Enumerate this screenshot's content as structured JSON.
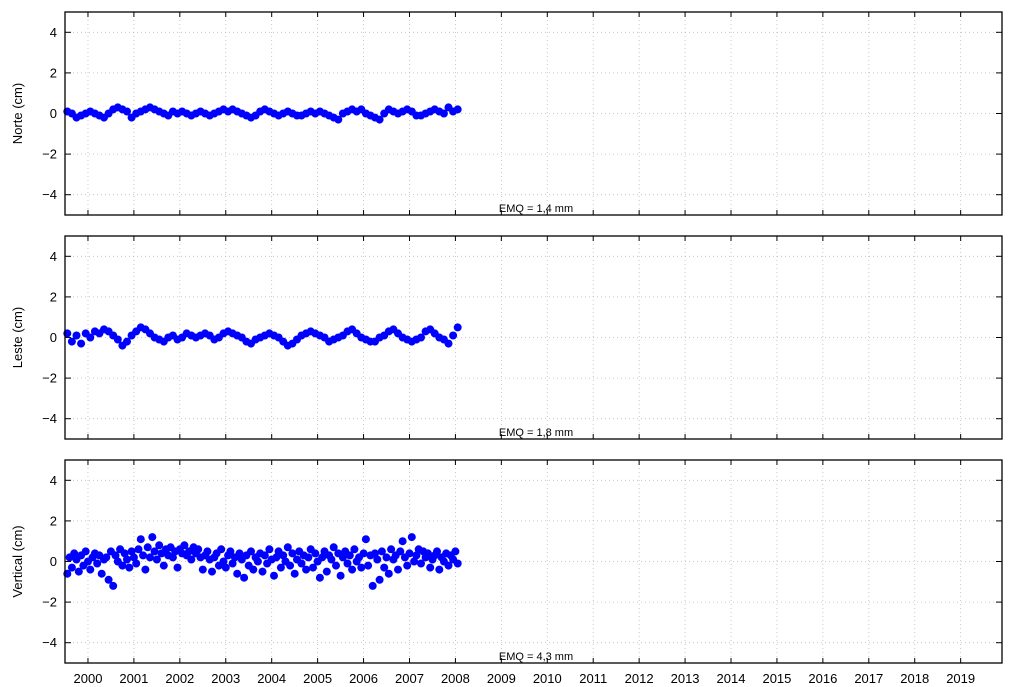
{
  "chart_data": [
    {
      "type": "scatter",
      "ylabel": "Norte (cm)",
      "annotation": "EMQ = 1,4 mm",
      "xlim": [
        1999.5,
        2019.9
      ],
      "ylim": [
        -5,
        5
      ],
      "yticks": [
        -4,
        -2,
        0,
        2,
        4
      ],
      "ytick_labels": [
        "−4",
        "−2",
        "0",
        "2",
        "4"
      ],
      "grid": true,
      "marker_color": "#0000ff",
      "series": [
        {
          "x": [
            1999.55,
            1999.65,
            1999.75,
            1999.85,
            1999.95,
            2000.05,
            2000.15,
            2000.25,
            2000.35,
            2000.45,
            2000.55,
            2000.65,
            2000.75,
            2000.85,
            2000.95,
            2001.05,
            2001.15,
            2001.25,
            2001.35,
            2001.45,
            2001.55,
            2001.65,
            2001.75,
            2001.85,
            2001.95,
            2002.05,
            2002.15,
            2002.25,
            2002.35,
            2002.45,
            2002.55,
            2002.65,
            2002.75,
            2002.85,
            2002.95,
            2003.05,
            2003.15,
            2003.25,
            2003.35,
            2003.45,
            2003.55,
            2003.65,
            2003.75,
            2003.85,
            2003.95,
            2004.05,
            2004.15,
            2004.25,
            2004.35,
            2004.45,
            2004.55,
            2004.65,
            2004.75,
            2004.85,
            2004.95,
            2005.05,
            2005.15,
            2005.25,
            2005.35,
            2005.45,
            2005.55,
            2005.65,
            2005.75,
            2005.85,
            2005.95,
            2006.05,
            2006.15,
            2006.25,
            2006.35,
            2006.45,
            2006.55,
            2006.65,
            2006.75,
            2006.85,
            2006.95,
            2007.05,
            2007.15,
            2007.25,
            2007.35,
            2007.45,
            2007.55,
            2007.65,
            2007.75,
            2007.85,
            2007.95,
            2008.05
          ],
          "y": [
            0.1,
            0.0,
            -0.2,
            -0.1,
            0.0,
            0.1,
            0.0,
            -0.1,
            -0.2,
            0.0,
            0.2,
            0.3,
            0.2,
            0.1,
            -0.2,
            0.0,
            0.1,
            0.2,
            0.3,
            0.2,
            0.1,
            0.0,
            -0.1,
            0.1,
            0.0,
            0.1,
            0.0,
            -0.1,
            0.0,
            0.1,
            0.0,
            -0.1,
            0.0,
            0.1,
            0.2,
            0.1,
            0.2,
            0.1,
            0.0,
            -0.1,
            -0.2,
            -0.1,
            0.1,
            0.2,
            0.1,
            0.0,
            -0.1,
            0.0,
            0.1,
            0.0,
            -0.1,
            -0.1,
            0.0,
            0.1,
            0.0,
            0.1,
            0.0,
            -0.1,
            -0.2,
            -0.3,
            0.0,
            0.1,
            0.2,
            0.1,
            0.2,
            0.0,
            -0.1,
            -0.2,
            -0.3,
            0.0,
            0.2,
            0.1,
            0.0,
            0.1,
            0.2,
            0.1,
            -0.1,
            -0.1,
            0.0,
            0.1,
            0.2,
            0.1,
            0.0,
            0.3,
            0.1,
            0.2
          ]
        }
      ]
    },
    {
      "type": "scatter",
      "ylabel": "Leste (cm)",
      "annotation": "EMQ = 1,8 mm",
      "xlim": [
        1999.5,
        2019.9
      ],
      "ylim": [
        -5,
        5
      ],
      "yticks": [
        -4,
        -2,
        0,
        2,
        4
      ],
      "ytick_labels": [
        "−4",
        "−2",
        "0",
        "2",
        "4"
      ],
      "grid": true,
      "marker_color": "#0000ff",
      "series": [
        {
          "x": [
            1999.55,
            1999.65,
            1999.75,
            1999.85,
            1999.95,
            2000.05,
            2000.15,
            2000.25,
            2000.35,
            2000.45,
            2000.55,
            2000.65,
            2000.75,
            2000.85,
            2000.95,
            2001.05,
            2001.15,
            2001.25,
            2001.35,
            2001.45,
            2001.55,
            2001.65,
            2001.75,
            2001.85,
            2001.95,
            2002.05,
            2002.15,
            2002.25,
            2002.35,
            2002.45,
            2002.55,
            2002.65,
            2002.75,
            2002.85,
            2002.95,
            2003.05,
            2003.15,
            2003.25,
            2003.35,
            2003.45,
            2003.55,
            2003.65,
            2003.75,
            2003.85,
            2003.95,
            2004.05,
            2004.15,
            2004.25,
            2004.35,
            2004.45,
            2004.55,
            2004.65,
            2004.75,
            2004.85,
            2004.95,
            2005.05,
            2005.15,
            2005.25,
            2005.35,
            2005.45,
            2005.55,
            2005.65,
            2005.75,
            2005.85,
            2005.95,
            2006.05,
            2006.15,
            2006.25,
            2006.35,
            2006.45,
            2006.55,
            2006.65,
            2006.75,
            2006.85,
            2006.95,
            2007.05,
            2007.15,
            2007.25,
            2007.35,
            2007.45,
            2007.55,
            2007.65,
            2007.75,
            2007.85,
            2007.95,
            2008.05
          ],
          "y": [
            0.2,
            -0.2,
            0.1,
            -0.3,
            0.2,
            0.0,
            0.3,
            0.2,
            0.4,
            0.3,
            0.1,
            -0.1,
            -0.4,
            -0.2,
            0.1,
            0.3,
            0.5,
            0.4,
            0.2,
            0.0,
            -0.1,
            -0.2,
            0.0,
            0.1,
            -0.1,
            0.0,
            0.2,
            0.1,
            0.0,
            0.1,
            0.2,
            0.1,
            -0.1,
            0.0,
            0.2,
            0.3,
            0.2,
            0.1,
            0.0,
            -0.2,
            -0.3,
            -0.1,
            0.0,
            0.1,
            0.2,
            0.1,
            0.0,
            -0.2,
            -0.4,
            -0.3,
            -0.1,
            0.1,
            0.2,
            0.3,
            0.2,
            0.1,
            0.0,
            -0.2,
            -0.1,
            0.0,
            0.1,
            0.3,
            0.4,
            0.2,
            0.0,
            -0.1,
            -0.2,
            -0.2,
            0.0,
            0.1,
            0.3,
            0.4,
            0.2,
            0.0,
            -0.1,
            -0.2,
            -0.1,
            0.0,
            0.3,
            0.4,
            0.2,
            0.0,
            -0.1,
            -0.3,
            0.1,
            0.5
          ]
        }
      ]
    },
    {
      "type": "scatter",
      "ylabel": "Vertical (cm)",
      "annotation": "EMQ = 4,3 mm",
      "xlim": [
        1999.5,
        2019.9
      ],
      "ylim": [
        -5,
        5
      ],
      "yticks": [
        -4,
        -2,
        0,
        2,
        4
      ],
      "ytick_labels": [
        "−4",
        "−2",
        "0",
        "2",
        "4"
      ],
      "grid": true,
      "marker_color": "#0000ff",
      "series": [
        {
          "x": [
            1999.55,
            1999.6,
            1999.65,
            1999.7,
            1999.75,
            1999.8,
            1999.85,
            1999.9,
            1999.95,
            2000.0,
            2000.05,
            2000.1,
            2000.15,
            2000.2,
            2000.25,
            2000.3,
            2000.35,
            2000.4,
            2000.45,
            2000.5,
            2000.55,
            2000.6,
            2000.65,
            2000.7,
            2000.75,
            2000.8,
            2000.85,
            2000.9,
            2000.95,
            2001.0,
            2001.05,
            2001.1,
            2001.15,
            2001.2,
            2001.25,
            2001.3,
            2001.35,
            2001.4,
            2001.45,
            2001.5,
            2001.55,
            2001.6,
            2001.65,
            2001.7,
            2001.75,
            2001.8,
            2001.85,
            2001.9,
            2001.95,
            2002.0,
            2002.05,
            2002.1,
            2002.15,
            2002.2,
            2002.25,
            2002.3,
            2002.35,
            2002.4,
            2002.45,
            2002.5,
            2002.55,
            2002.6,
            2002.65,
            2002.7,
            2002.75,
            2002.8,
            2002.85,
            2002.9,
            2002.95,
            2003.0,
            2003.05,
            2003.1,
            2003.15,
            2003.2,
            2003.25,
            2003.3,
            2003.35,
            2003.4,
            2003.45,
            2003.5,
            2003.55,
            2003.6,
            2003.65,
            2003.7,
            2003.75,
            2003.8,
            2003.85,
            2003.9,
            2003.95,
            2004.0,
            2004.05,
            2004.1,
            2004.15,
            2004.2,
            2004.25,
            2004.3,
            2004.35,
            2004.4,
            2004.45,
            2004.5,
            2004.55,
            2004.6,
            2004.65,
            2004.7,
            2004.75,
            2004.8,
            2004.85,
            2004.9,
            2004.95,
            2005.0,
            2005.05,
            2005.1,
            2005.15,
            2005.2,
            2005.25,
            2005.3,
            2005.35,
            2005.4,
            2005.45,
            2005.5,
            2005.55,
            2005.6,
            2005.65,
            2005.7,
            2005.75,
            2005.8,
            2005.85,
            2005.9,
            2005.95,
            2006.0,
            2006.05,
            2006.1,
            2006.15,
            2006.2,
            2006.25,
            2006.3,
            2006.35,
            2006.4,
            2006.45,
            2006.5,
            2006.55,
            2006.6,
            2006.65,
            2006.7,
            2006.75,
            2006.8,
            2006.85,
            2006.9,
            2006.95,
            2007.0,
            2007.05,
            2007.1,
            2007.15,
            2007.2,
            2007.25,
            2007.3,
            2007.35,
            2007.4,
            2007.45,
            2007.5,
            2007.55,
            2007.6,
            2007.65,
            2007.7,
            2007.75,
            2007.8,
            2007.85,
            2007.9,
            2007.95,
            2008.0,
            2008.05
          ],
          "y": [
            -0.6,
            0.2,
            -0.3,
            0.4,
            0.1,
            -0.5,
            0.3,
            -0.2,
            0.5,
            0.0,
            -0.4,
            0.2,
            0.4,
            -0.1,
            0.3,
            -0.6,
            0.1,
            0.2,
            -0.9,
            0.5,
            -1.2,
            0.3,
            0.0,
            0.6,
            -0.2,
            0.4,
            0.1,
            -0.3,
            0.5,
            0.2,
            -0.1,
            0.6,
            1.1,
            0.3,
            -0.4,
            0.7,
            0.2,
            1.2,
            0.5,
            0.1,
            0.8,
            0.4,
            -0.2,
            0.6,
            0.3,
            0.7,
            0.2,
            0.5,
            -0.3,
            0.6,
            0.4,
            0.8,
            0.3,
            0.5,
            0.1,
            0.7,
            0.4,
            0.6,
            0.2,
            -0.4,
            0.3,
            0.5,
            0.1,
            -0.5,
            0.2,
            0.4,
            -0.2,
            0.6,
            0.0,
            -0.3,
            0.3,
            0.5,
            -0.1,
            0.2,
            -0.6,
            0.4,
            0.1,
            -0.8,
            0.3,
            -0.2,
            0.5,
            -0.4,
            0.2,
            0.0,
            0.4,
            -0.5,
            0.3,
            -0.1,
            0.6,
            0.1,
            -0.7,
            0.2,
            0.5,
            -0.3,
            0.3,
            0.0,
            0.7,
            -0.2,
            0.4,
            -0.6,
            0.1,
            0.5,
            -0.1,
            0.3,
            -0.4,
            0.2,
            0.6,
            -0.3,
            0.4,
            0.0,
            -0.8,
            0.2,
            0.5,
            -0.5,
            0.3,
            0.1,
            0.7,
            -0.2,
            0.4,
            -0.7,
            0.2,
            0.5,
            -0.1,
            0.3,
            -0.4,
            0.6,
            0.0,
            0.2,
            -0.3,
            0.4,
            1.1,
            -0.2,
            0.3,
            -1.2,
            0.4,
            0.1,
            -0.9,
            0.5,
            -0.3,
            0.2,
            -0.6,
            0.6,
            0.1,
            0.3,
            -0.4,
            0.5,
            1.0,
            0.2,
            -0.2,
            0.4,
            1.2,
            0.0,
            0.3,
            0.6,
            -0.1,
            0.5,
            0.2,
            0.4,
            -0.3,
            0.1,
            0.3,
            0.5,
            -0.4,
            0.2,
            0.0,
            0.4,
            -0.2,
            0.3,
            0.1,
            0.5,
            -0.1
          ]
        }
      ]
    }
  ],
  "x_axis": {
    "tick_labels": [
      "2000",
      "2001",
      "2002",
      "2003",
      "2004",
      "2005",
      "2006",
      "2007",
      "2008",
      "2009",
      "2010",
      "2011",
      "2012",
      "2013",
      "2014",
      "2015",
      "2016",
      "2017",
      "2018",
      "2019"
    ],
    "tick_values": [
      2000,
      2001,
      2002,
      2003,
      2004,
      2005,
      2006,
      2007,
      2008,
      2009,
      2010,
      2011,
      2012,
      2013,
      2014,
      2015,
      2016,
      2017,
      2018,
      2019
    ]
  }
}
